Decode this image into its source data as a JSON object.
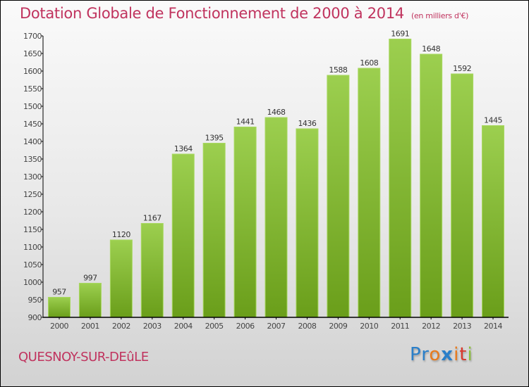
{
  "title": "Dotation Globale de Fonctionnement de 2000 à 2014",
  "title_unit": "(en milliers d'€)",
  "commune": "QUESNOY-SUR-DEûLE",
  "logo": {
    "letters": [
      {
        "char": "P",
        "color": "#2a7fc9"
      },
      {
        "char": "r",
        "color": "#2a7fc9"
      },
      {
        "char": "o",
        "color": "#e87a1c"
      },
      {
        "char": "x",
        "color": "#2a7fc9"
      },
      {
        "char": "i",
        "color": "#e87a1c"
      },
      {
        "char": "t",
        "color": "#d9382c"
      },
      {
        "char": "i",
        "color": "#8bbf3a"
      }
    ]
  },
  "colors": {
    "title": "#c0335e",
    "bar_top": "#9ccf4f",
    "bar_bottom": "#6a9e1a",
    "bar_edge": "#a8d860"
  },
  "chart_data": {
    "type": "bar",
    "title": "Dotation Globale de Fonctionnement de 2000 à 2014 (en milliers d'€)",
    "xlabel": "",
    "ylabel": "",
    "categories": [
      "2000",
      "2001",
      "2002",
      "2003",
      "2004",
      "2005",
      "2006",
      "2007",
      "2008",
      "2009",
      "2010",
      "2011",
      "2012",
      "2013",
      "2014"
    ],
    "values": [
      957,
      997,
      1120,
      1167,
      1364,
      1395,
      1441,
      1468,
      1436,
      1588,
      1608,
      1691,
      1648,
      1592,
      1445
    ],
    "ylim": [
      900,
      1700
    ],
    "yticks": [
      900,
      950,
      1000,
      1050,
      1100,
      1150,
      1200,
      1250,
      1300,
      1350,
      1400,
      1450,
      1500,
      1550,
      1600,
      1650,
      1700
    ],
    "grid": false,
    "legend": "none"
  }
}
